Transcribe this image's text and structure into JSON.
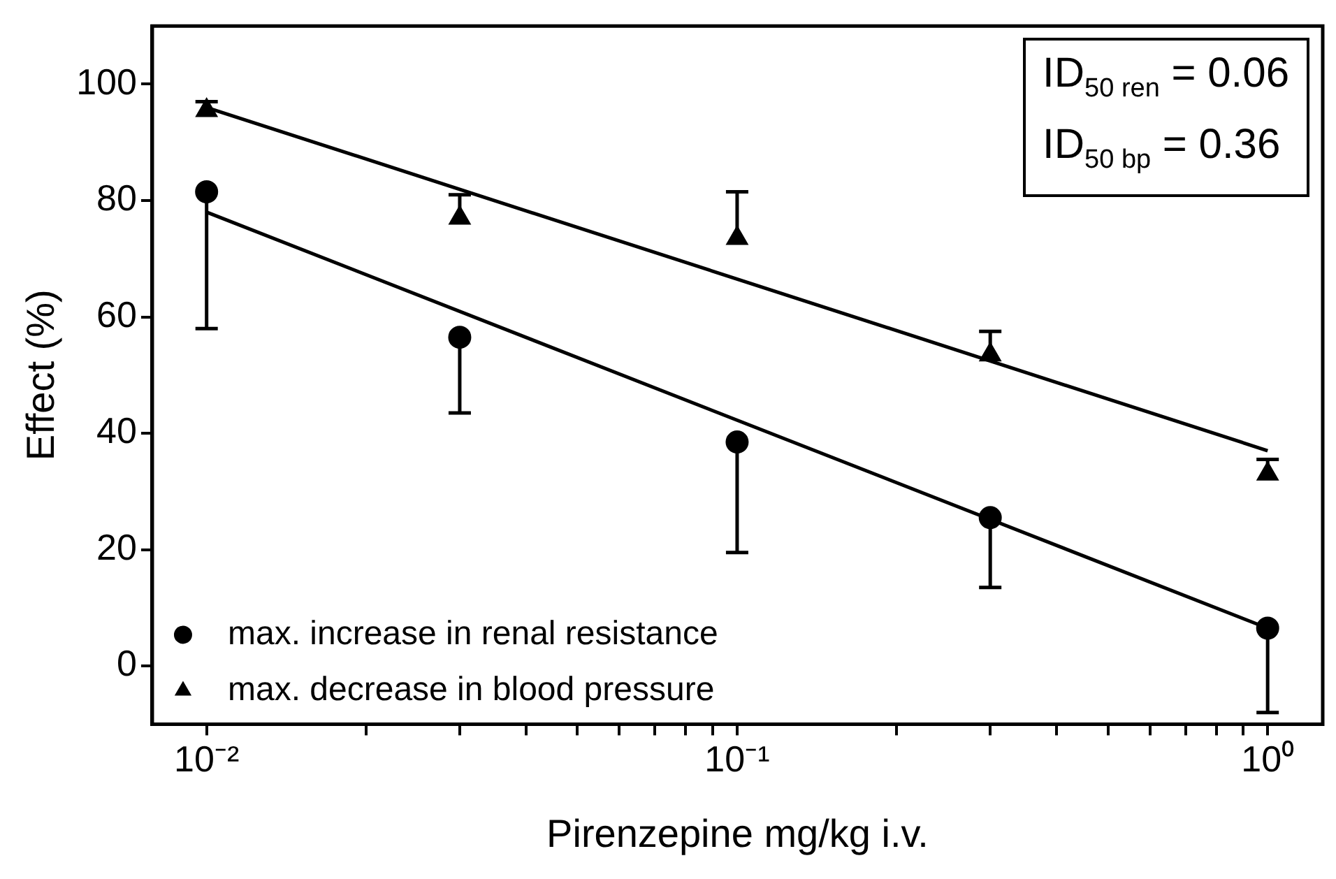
{
  "chart_data": {
    "type": "scatter",
    "xlabel": "Pirenzepine mg/kg i.v.",
    "ylabel": "Effect (%)",
    "log": "x",
    "grid": false,
    "legend": "bottom left",
    "xlim": [
      0.0079,
      1.27
    ],
    "xticks": [
      {
        "value": 0.01,
        "label": "10⁻²"
      },
      {
        "value": 0.02,
        "label": null
      },
      {
        "value": 0.03,
        "label": null
      },
      {
        "value": 0.04,
        "label": null
      },
      {
        "value": 0.05,
        "label": null
      },
      {
        "value": 0.06,
        "label": null
      },
      {
        "value": 0.07,
        "label": null
      },
      {
        "value": 0.08,
        "label": null
      },
      {
        "value": 0.09,
        "label": null
      },
      {
        "value": 0.1,
        "label": "10⁻¹"
      },
      {
        "value": 0.2,
        "label": null
      },
      {
        "value": 0.3,
        "label": null
      },
      {
        "value": 0.4,
        "label": null
      },
      {
        "value": 0.5,
        "label": null
      },
      {
        "value": 0.6,
        "label": null
      },
      {
        "value": 0.7,
        "label": null
      },
      {
        "value": 0.8,
        "label": null
      },
      {
        "value": 0.9,
        "label": null
      },
      {
        "value": 1,
        "label": "10⁰"
      }
    ],
    "ylim": [
      -10,
      110
    ],
    "yticks": [
      0,
      20,
      40,
      60,
      80,
      100
    ],
    "annotations": [
      "ID$_{50 ren}$ = 0.06",
      "ID$_{50 bp}$ = 0.36"
    ],
    "series": [
      {
        "name": "max. increase in renal resistance",
        "type": "scatter",
        "marker": "circle",
        "color": "#000000",
        "x": [
          0.01,
          0.03,
          0.1,
          0.3,
          1
        ],
        "values": [
          81.5,
          56.5,
          38.5,
          25.5,
          6.5
        ],
        "errors": [
          [
            58,
            81.5
          ],
          [
            43.5,
            56.5
          ],
          [
            19.5,
            38.5
          ],
          [
            13.5,
            25.5
          ],
          [
            -8,
            6.5
          ]
        ]
      },
      {
        "name": "max. decrease in blood pressure",
        "type": "scatter",
        "marker": "triangle",
        "color": "#000000",
        "x": [
          0.01,
          0.03,
          0.1,
          0.3,
          1
        ],
        "values": [
          95.5,
          77,
          73.5,
          53.5,
          33
        ],
        "errors": [
          [
            95.5,
            97
          ],
          [
            77,
            81
          ],
          [
            73.5,
            81.5
          ],
          [
            53.5,
            57.5
          ],
          [
            33,
            35.5
          ]
        ]
      },
      {
        "type": "line",
        "marker": "none",
        "line_style": "solid",
        "color": "#000000",
        "x": [
          0.01,
          1
        ],
        "values": [
          78,
          6.5
        ]
      },
      {
        "type": "line",
        "marker": "none",
        "line_style": "solid",
        "color": "#000000",
        "x": [
          0.01,
          1
        ],
        "values": [
          96,
          37
        ]
      }
    ]
  }
}
